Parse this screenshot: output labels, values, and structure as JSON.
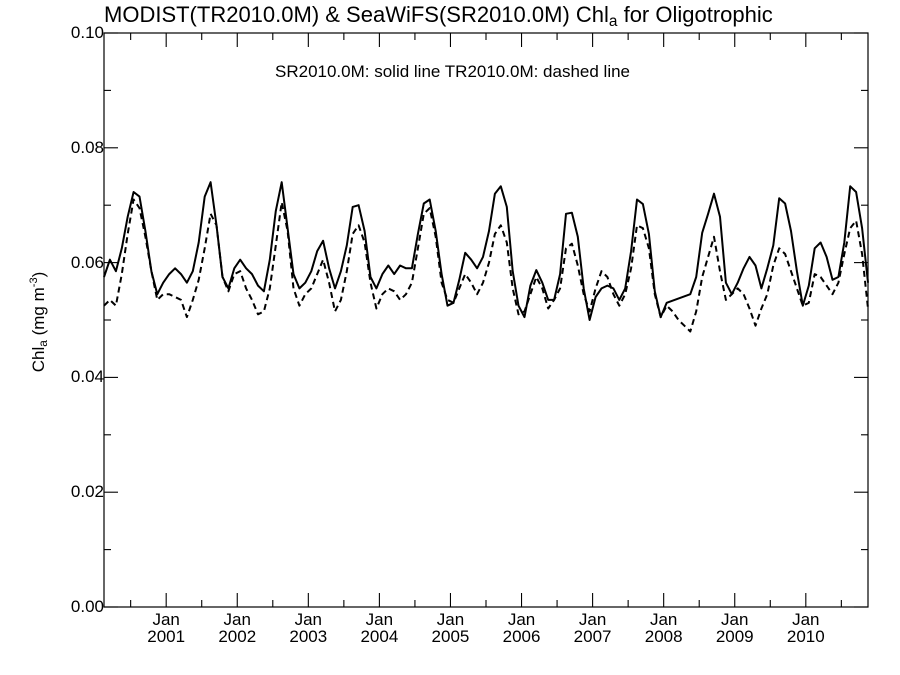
{
  "chart_data": {
    "type": "line",
    "title": {
      "prefix": "MODIST(TR2010.0M) & SeaWiFS(SR2010.0M)  Chl",
      "subscript": "a",
      "suffix": " for Oligotrophic"
    },
    "annotation": "SR2010.0M: solid line   TR2010.0M: dashed line",
    "ylabel": {
      "main": "Chl",
      "sub": "a",
      "units": " (mg m",
      "sup": "-3",
      "close": ")"
    },
    "ylim": [
      0.0,
      0.1
    ],
    "yticks": [
      "0.00",
      "0.02",
      "0.04",
      "0.06",
      "0.08",
      "0.10"
    ],
    "xlim": [
      2000.125,
      2010.875
    ],
    "xticks": [
      {
        "month": "Jan",
        "year": "2001",
        "x": 2001.0
      },
      {
        "month": "Jan",
        "year": "2002",
        "x": 2002.0
      },
      {
        "month": "Jan",
        "year": "2003",
        "x": 2003.0
      },
      {
        "month": "Jan",
        "year": "2004",
        "x": 2004.0
      },
      {
        "month": "Jan",
        "year": "2005",
        "x": 2005.0
      },
      {
        "month": "Jan",
        "year": "2006",
        "x": 2006.0
      },
      {
        "month": "Jan",
        "year": "2007",
        "x": 2007.0
      },
      {
        "month": "Jan",
        "year": "2008",
        "x": 2008.0
      },
      {
        "month": "Jan",
        "year": "2009",
        "x": 2009.0
      },
      {
        "month": "Jan",
        "year": "2010",
        "x": 2010.0
      }
    ],
    "series": [
      {
        "name": "SR2010.0M",
        "style": "solid",
        "color": "#000000",
        "points": [
          [
            2000.125,
            0.0575
          ],
          [
            2000.208,
            0.0605
          ],
          [
            2000.292,
            0.0585
          ],
          [
            2000.375,
            0.0625
          ],
          [
            2000.458,
            0.068
          ],
          [
            2000.542,
            0.0723
          ],
          [
            2000.625,
            0.0715
          ],
          [
            2000.708,
            0.0655
          ],
          [
            2000.792,
            0.0585
          ],
          [
            2000.875,
            0.0545
          ],
          [
            2000.958,
            0.0565
          ],
          [
            2001.042,
            0.058
          ],
          [
            2001.125,
            0.059
          ],
          [
            2001.208,
            0.058
          ],
          [
            2001.292,
            0.0565
          ],
          [
            2001.375,
            0.0585
          ],
          [
            2001.458,
            0.0635
          ],
          [
            2001.542,
            0.0715
          ],
          [
            2001.625,
            0.074
          ],
          [
            2001.708,
            0.0665
          ],
          [
            2001.792,
            0.0575
          ],
          [
            2001.875,
            0.0555
          ],
          [
            2001.958,
            0.059
          ],
          [
            2002.042,
            0.0605
          ],
          [
            2002.125,
            0.059
          ],
          [
            2002.208,
            0.058
          ],
          [
            2002.292,
            0.056
          ],
          [
            2002.375,
            0.055
          ],
          [
            2002.458,
            0.0605
          ],
          [
            2002.542,
            0.069
          ],
          [
            2002.625,
            0.074
          ],
          [
            2002.708,
            0.066
          ],
          [
            2002.792,
            0.058
          ],
          [
            2002.875,
            0.0555
          ],
          [
            2002.958,
            0.0565
          ],
          [
            2003.042,
            0.0585
          ],
          [
            2003.125,
            0.062
          ],
          [
            2003.208,
            0.0638
          ],
          [
            2003.292,
            0.059
          ],
          [
            2003.375,
            0.0555
          ],
          [
            2003.458,
            0.0585
          ],
          [
            2003.542,
            0.063
          ],
          [
            2003.625,
            0.0697
          ],
          [
            2003.708,
            0.07
          ],
          [
            2003.792,
            0.0655
          ],
          [
            2003.875,
            0.0575
          ],
          [
            2003.958,
            0.0555
          ],
          [
            2004.042,
            0.058
          ],
          [
            2004.125,
            0.0595
          ],
          [
            2004.208,
            0.058
          ],
          [
            2004.292,
            0.0595
          ],
          [
            2004.375,
            0.059
          ],
          [
            2004.458,
            0.059
          ],
          [
            2004.542,
            0.065
          ],
          [
            2004.625,
            0.0703
          ],
          [
            2004.708,
            0.071
          ],
          [
            2004.792,
            0.0655
          ],
          [
            2004.875,
            0.058
          ],
          [
            2004.958,
            0.0525
          ],
          [
            2005.042,
            0.053
          ],
          [
            2005.125,
            0.057
          ],
          [
            2005.208,
            0.0617
          ],
          [
            2005.292,
            0.0605
          ],
          [
            2005.375,
            0.059
          ],
          [
            2005.458,
            0.061
          ],
          [
            2005.542,
            0.0655
          ],
          [
            2005.625,
            0.072
          ],
          [
            2005.708,
            0.0733
          ],
          [
            2005.792,
            0.0697
          ],
          [
            2005.875,
            0.0585
          ],
          [
            2005.958,
            0.0525
          ],
          [
            2006.042,
            0.0505
          ],
          [
            2006.125,
            0.056
          ],
          [
            2006.208,
            0.0587
          ],
          [
            2006.292,
            0.0565
          ],
          [
            2006.375,
            0.0535
          ],
          [
            2006.458,
            0.0535
          ],
          [
            2006.542,
            0.058
          ],
          [
            2006.625,
            0.0685
          ],
          [
            2006.708,
            0.0687
          ],
          [
            2006.792,
            0.0645
          ],
          [
            2006.875,
            0.0555
          ],
          [
            2006.958,
            0.05
          ],
          [
            2007.042,
            0.054
          ],
          [
            2007.125,
            0.0555
          ],
          [
            2007.208,
            0.056
          ],
          [
            2007.292,
            0.0555
          ],
          [
            2007.375,
            0.0535
          ],
          [
            2007.458,
            0.0555
          ],
          [
            2007.542,
            0.062
          ],
          [
            2007.625,
            0.071
          ],
          [
            2007.708,
            0.0702
          ],
          [
            2007.792,
            0.065
          ],
          [
            2007.875,
            0.055
          ],
          [
            2007.958,
            0.0505
          ],
          [
            2008.042,
            0.053
          ],
          [
            2008.375,
            0.0545
          ],
          [
            2008.458,
            0.0575
          ],
          [
            2008.542,
            0.0652
          ],
          [
            2008.625,
            0.0685
          ],
          [
            2008.708,
            0.072
          ],
          [
            2008.792,
            0.068
          ],
          [
            2008.875,
            0.0565
          ],
          [
            2008.958,
            0.0545
          ],
          [
            2009.042,
            0.0565
          ],
          [
            2009.125,
            0.059
          ],
          [
            2009.208,
            0.061
          ],
          [
            2009.292,
            0.0595
          ],
          [
            2009.375,
            0.0555
          ],
          [
            2009.458,
            0.059
          ],
          [
            2009.542,
            0.063
          ],
          [
            2009.625,
            0.0712
          ],
          [
            2009.708,
            0.0703
          ],
          [
            2009.792,
            0.0655
          ],
          [
            2009.875,
            0.0585
          ],
          [
            2009.958,
            0.0525
          ],
          [
            2010.042,
            0.056
          ],
          [
            2010.125,
            0.0625
          ],
          [
            2010.208,
            0.0635
          ],
          [
            2010.292,
            0.061
          ],
          [
            2010.375,
            0.057
          ],
          [
            2010.458,
            0.0575
          ],
          [
            2010.542,
            0.0635
          ],
          [
            2010.625,
            0.0733
          ],
          [
            2010.708,
            0.0723
          ],
          [
            2010.792,
            0.066
          ],
          [
            2010.875,
            0.0565
          ]
        ]
      },
      {
        "name": "TR2010.0M",
        "style": "dashed",
        "color": "#000000",
        "points": [
          [
            2000.125,
            0.0525
          ],
          [
            2000.208,
            0.0535
          ],
          [
            2000.292,
            0.0525
          ],
          [
            2000.375,
            0.058
          ],
          [
            2000.458,
            0.065
          ],
          [
            2000.542,
            0.071
          ],
          [
            2000.625,
            0.0695
          ],
          [
            2000.708,
            0.0645
          ],
          [
            2000.792,
            0.0585
          ],
          [
            2000.875,
            0.0535
          ],
          [
            2000.958,
            0.0545
          ],
          [
            2001.042,
            0.0545
          ],
          [
            2001.125,
            0.054
          ],
          [
            2001.208,
            0.0535
          ],
          [
            2001.292,
            0.0505
          ],
          [
            2001.375,
            0.0535
          ],
          [
            2001.458,
            0.057
          ],
          [
            2001.542,
            0.0625
          ],
          [
            2001.625,
            0.0685
          ],
          [
            2001.708,
            0.0665
          ],
          [
            2001.792,
            0.0575
          ],
          [
            2001.875,
            0.055
          ],
          [
            2001.958,
            0.058
          ],
          [
            2002.042,
            0.0585
          ],
          [
            2002.125,
            0.0555
          ],
          [
            2002.208,
            0.0535
          ],
          [
            2002.292,
            0.051
          ],
          [
            2002.375,
            0.0515
          ],
          [
            2002.458,
            0.0555
          ],
          [
            2002.542,
            0.063
          ],
          [
            2002.625,
            0.0705
          ],
          [
            2002.708,
            0.0655
          ],
          [
            2002.792,
            0.0555
          ],
          [
            2002.875,
            0.0525
          ],
          [
            2002.958,
            0.0545
          ],
          [
            2003.042,
            0.0555
          ],
          [
            2003.125,
            0.058
          ],
          [
            2003.208,
            0.0605
          ],
          [
            2003.292,
            0.0565
          ],
          [
            2003.375,
            0.0515
          ],
          [
            2003.458,
            0.0535
          ],
          [
            2003.542,
            0.0585
          ],
          [
            2003.625,
            0.065
          ],
          [
            2003.708,
            0.0665
          ],
          [
            2003.792,
            0.0635
          ],
          [
            2003.875,
            0.0565
          ],
          [
            2003.958,
            0.052
          ],
          [
            2004.042,
            0.0545
          ],
          [
            2004.125,
            0.0555
          ],
          [
            2004.208,
            0.055
          ],
          [
            2004.292,
            0.0535
          ],
          [
            2004.375,
            0.0545
          ],
          [
            2004.458,
            0.0565
          ],
          [
            2004.542,
            0.0625
          ],
          [
            2004.625,
            0.0685
          ],
          [
            2004.708,
            0.0695
          ],
          [
            2004.792,
            0.0645
          ],
          [
            2004.875,
            0.0565
          ],
          [
            2004.958,
            0.0535
          ],
          [
            2005.042,
            0.053
          ],
          [
            2005.125,
            0.0555
          ],
          [
            2005.208,
            0.058
          ],
          [
            2005.292,
            0.0565
          ],
          [
            2005.375,
            0.0545
          ],
          [
            2005.458,
            0.0565
          ],
          [
            2005.542,
            0.06
          ],
          [
            2005.625,
            0.065
          ],
          [
            2005.708,
            0.0665
          ],
          [
            2005.792,
            0.0635
          ],
          [
            2005.875,
            0.0555
          ],
          [
            2005.958,
            0.051
          ],
          [
            2006.042,
            0.0515
          ],
          [
            2006.125,
            0.0545
          ],
          [
            2006.208,
            0.0575
          ],
          [
            2006.292,
            0.0555
          ],
          [
            2006.375,
            0.052
          ],
          [
            2006.458,
            0.0535
          ],
          [
            2006.542,
            0.0555
          ],
          [
            2006.625,
            0.0625
          ],
          [
            2006.708,
            0.0633
          ],
          [
            2006.792,
            0.0595
          ],
          [
            2006.875,
            0.0545
          ],
          [
            2006.958,
            0.0515
          ],
          [
            2007.042,
            0.0555
          ],
          [
            2007.125,
            0.0585
          ],
          [
            2007.208,
            0.0575
          ],
          [
            2007.292,
            0.0545
          ],
          [
            2007.375,
            0.0525
          ],
          [
            2007.458,
            0.0545
          ],
          [
            2007.542,
            0.059
          ],
          [
            2007.625,
            0.0665
          ],
          [
            2007.708,
            0.066
          ],
          [
            2007.792,
            0.0625
          ],
          [
            2007.875,
            0.0545
          ],
          [
            2007.958,
            0.0505
          ],
          [
            2008.042,
            0.0525
          ],
          [
            2008.125,
            0.0515
          ],
          [
            2008.208,
            0.05
          ],
          [
            2008.292,
            0.049
          ],
          [
            2008.375,
            0.048
          ],
          [
            2008.458,
            0.0515
          ],
          [
            2008.542,
            0.0575
          ],
          [
            2008.625,
            0.061
          ],
          [
            2008.708,
            0.0645
          ],
          [
            2008.792,
            0.0585
          ],
          [
            2008.875,
            0.0535
          ],
          [
            2008.958,
            0.0545
          ],
          [
            2009.042,
            0.0555
          ],
          [
            2009.125,
            0.0545
          ],
          [
            2009.208,
            0.052
          ],
          [
            2009.292,
            0.049
          ],
          [
            2009.375,
            0.052
          ],
          [
            2009.458,
            0.0545
          ],
          [
            2009.542,
            0.0595
          ],
          [
            2009.625,
            0.0625
          ],
          [
            2009.708,
            0.0615
          ],
          [
            2009.792,
            0.0585
          ],
          [
            2009.875,
            0.0555
          ],
          [
            2009.958,
            0.0525
          ],
          [
            2010.042,
            0.053
          ],
          [
            2010.125,
            0.058
          ],
          [
            2010.208,
            0.0575
          ],
          [
            2010.292,
            0.056
          ],
          [
            2010.375,
            0.0545
          ],
          [
            2010.458,
            0.0565
          ],
          [
            2010.542,
            0.0615
          ],
          [
            2010.625,
            0.066
          ],
          [
            2010.708,
            0.0673
          ],
          [
            2010.792,
            0.0615
          ],
          [
            2010.875,
            0.052
          ]
        ]
      }
    ]
  }
}
